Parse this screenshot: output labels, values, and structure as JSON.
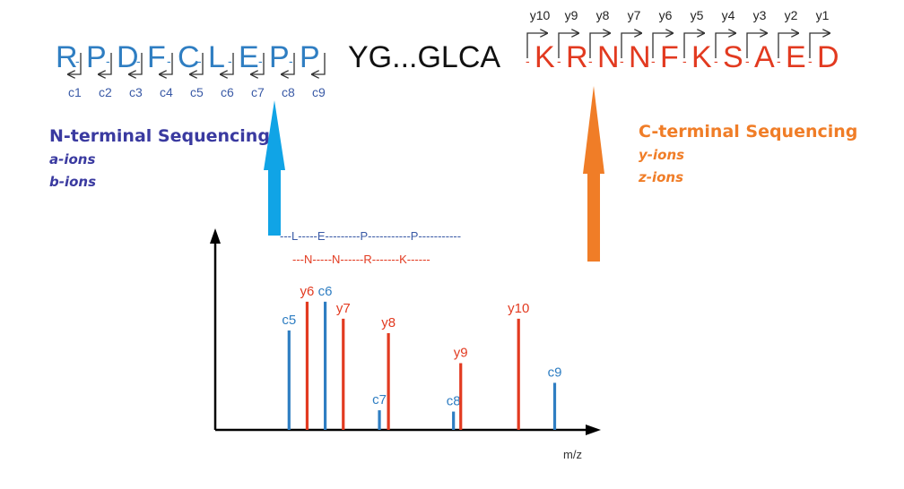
{
  "colors": {
    "n_term": "#2f7ec2",
    "c_term": "#e23a20",
    "middle": "#111111",
    "n_heading": "#3a3aa0",
    "c_heading": "#f07d27",
    "n_arrow": "#10a4e6",
    "c_arrow": "#f07d27",
    "ladder_n": "#3a5aa6",
    "ladder_c": "#e23a20",
    "axis": "#000000"
  },
  "sequence": {
    "n_residues": [
      "R",
      "P",
      "D",
      "F",
      "C",
      "L",
      "E",
      "P",
      "P"
    ],
    "middle": "YG...GLCA",
    "c_residues": [
      "K",
      "R",
      "N",
      "N",
      "F",
      "K",
      "S",
      "A",
      "E",
      "D"
    ],
    "c_ion_labels": [
      "c1",
      "c2",
      "c3",
      "c4",
      "c5",
      "c6",
      "c7",
      "c8",
      "c9"
    ],
    "y_ion_labels": [
      "y10",
      "y9",
      "y8",
      "y7",
      "y6",
      "y5",
      "y4",
      "y3",
      "y2",
      "y1"
    ]
  },
  "n_terminal": {
    "heading": "N-terminal Sequencing",
    "ions": [
      "a-ions",
      "b-ions"
    ]
  },
  "c_terminal": {
    "heading": "C-terminal Sequencing",
    "ions": [
      "y-ions",
      "z-ions"
    ]
  },
  "spectrum": {
    "x_label": "m/z",
    "n_ladder": "---L-----E---------P-----------P-----------",
    "c_ladder": "---N-----N------R-------K------",
    "peaks": [
      {
        "label": "c5",
        "series": "c",
        "mz": 1,
        "intensity": 0.76
      },
      {
        "label": "y6",
        "series": "y",
        "mz": 1.5,
        "intensity": 0.98
      },
      {
        "label": "c6",
        "series": "c",
        "mz": 2,
        "intensity": 0.98
      },
      {
        "label": "y7",
        "series": "y",
        "mz": 2.5,
        "intensity": 0.85
      },
      {
        "label": "c7",
        "series": "c",
        "mz": 3.5,
        "intensity": 0.15
      },
      {
        "label": "y8",
        "series": "y",
        "mz": 3.75,
        "intensity": 0.74
      },
      {
        "label": "c8",
        "series": "c",
        "mz": 5.55,
        "intensity": 0.14
      },
      {
        "label": "y9",
        "series": "y",
        "mz": 5.75,
        "intensity": 0.51
      },
      {
        "label": "y10",
        "series": "y",
        "mz": 7.35,
        "intensity": 0.85
      },
      {
        "label": "c9",
        "series": "c",
        "mz": 8.35,
        "intensity": 0.36
      }
    ]
  }
}
